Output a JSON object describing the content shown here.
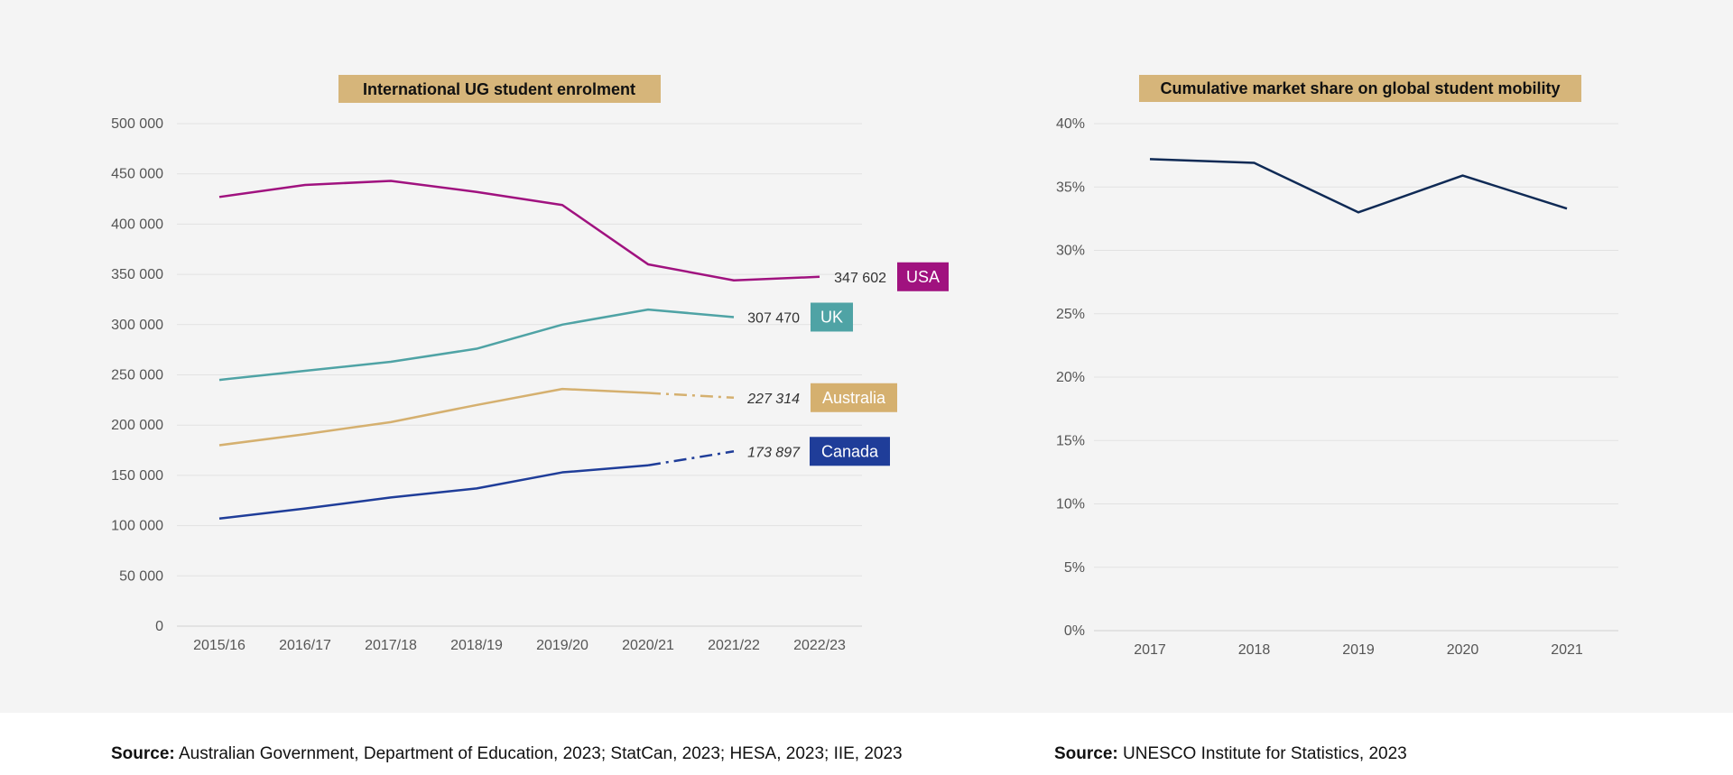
{
  "chart_data": [
    {
      "type": "line",
      "title": "International UG student enrolment",
      "categories": [
        "2015/16",
        "2016/17",
        "2017/18",
        "2018/19",
        "2019/20",
        "2020/21",
        "2021/22",
        "2022/23"
      ],
      "ylim": [
        0,
        500000
      ],
      "yticks": [
        "500 000",
        "450 000",
        "400 000",
        "350 000",
        "300 000",
        "250 000",
        "200 000",
        "150 000",
        "100 000",
        "50 000",
        "0"
      ],
      "ytick_values": [
        500000,
        450000,
        400000,
        350000,
        300000,
        250000,
        200000,
        150000,
        100000,
        50000,
        0
      ],
      "grid": true,
      "series": [
        {
          "name": "USA",
          "color": "#a0127f",
          "values": [
            427000,
            439000,
            443000,
            432000,
            419000,
            360000,
            344000,
            347602
          ],
          "dashed_from": null,
          "end_label": "347 602",
          "end_italic": false
        },
        {
          "name": "UK",
          "color": "#4fa3a5",
          "values": [
            245000,
            254000,
            263000,
            276000,
            300000,
            315000,
            307470,
            null
          ],
          "dashed_from": null,
          "end_label": "307 470",
          "end_italic": false
        },
        {
          "name": "Australia",
          "color": "#d5b06f",
          "values": [
            180000,
            191000,
            203000,
            220000,
            236000,
            232000,
            227314,
            null
          ],
          "dashed_from": 5,
          "end_label": "227 314",
          "end_italic": true
        },
        {
          "name": "Canada",
          "color": "#1f3d99",
          "values": [
            107000,
            117000,
            128000,
            137000,
            153000,
            160000,
            173897,
            null
          ],
          "dashed_from": 5,
          "end_label": "173 897",
          "end_italic": true
        }
      ]
    },
    {
      "type": "line",
      "title": "Cumulative market share on global student mobility",
      "categories": [
        "2017",
        "2018",
        "2019",
        "2020",
        "2021"
      ],
      "ylim": [
        0,
        40
      ],
      "yticks": [
        "40%",
        "35%",
        "30%",
        "25%",
        "20%",
        "15%",
        "10%",
        "5%",
        "0%"
      ],
      "ytick_values": [
        40,
        35,
        30,
        25,
        20,
        15,
        10,
        5,
        0
      ],
      "grid": true,
      "series": [
        {
          "color": "#0f2a55",
          "values": [
            37.2,
            36.9,
            33.0,
            35.9,
            33.3
          ]
        }
      ]
    }
  ],
  "sources": [
    {
      "label": "Source:",
      "text": " Australian Government, Department of Education, 2023; StatCan, 2023; HESA, 2023; IIE, 2023"
    },
    {
      "label": "Source:",
      "text": " UNESCO Institute for Statistics, 2023"
    }
  ],
  "colors": {
    "title_bg": "#d6b57a",
    "panel_bg": "#f4f4f4",
    "grid": "#e2e2e2"
  }
}
